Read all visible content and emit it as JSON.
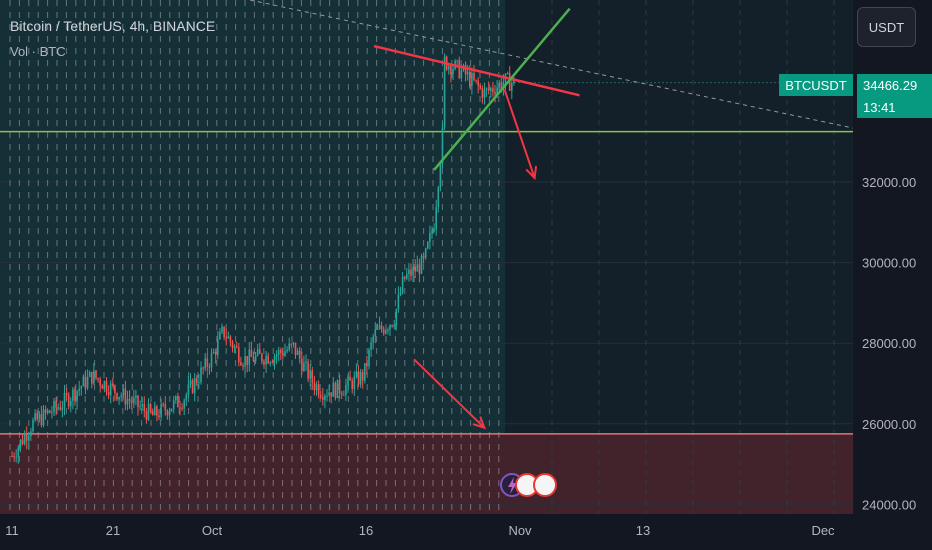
{
  "header": {
    "title": "Bitcoin / TetherUS, 4h, BINANCE",
    "indicator": "Vol · BTC",
    "currency_button": "USDT"
  },
  "price_label": {
    "symbol": "BTCUSDT",
    "price": "34466.29",
    "countdown": "13:41"
  },
  "colors": {
    "background": "#131722",
    "up": "#26a69a",
    "down": "#ef5350",
    "accent_price": "#089981",
    "trend_red": "#f23645",
    "trend_green": "#4caf50"
  },
  "chart_data": {
    "type": "candlestick",
    "symbol": "BTCUSDT",
    "interval": "4h",
    "exchange": "BINANCE",
    "y_ticks": [
      "32000.00",
      "30000.00",
      "28000.00",
      "26000.00",
      "24000.00"
    ],
    "x_ticks": [
      "11",
      "21",
      "Oct",
      "16",
      "Nov",
      "13",
      "Dec"
    ],
    "ylim": [
      23700,
      37500
    ],
    "price_path": [
      [
        "2023-09-11",
        25200
      ],
      [
        "2023-09-13",
        26000
      ],
      [
        "2023-09-16",
        26500
      ],
      [
        "2023-09-19",
        27200
      ],
      [
        "2023-09-22",
        26700
      ],
      [
        "2023-09-25",
        26200
      ],
      [
        "2023-09-28",
        26600
      ],
      [
        "2023-10-01",
        27700
      ],
      [
        "2023-10-02",
        28300
      ],
      [
        "2023-10-04",
        27600
      ],
      [
        "2023-10-07",
        27700
      ],
      [
        "2023-10-09",
        27900
      ],
      [
        "2023-10-11",
        27000
      ],
      [
        "2023-10-12",
        26800
      ],
      [
        "2023-10-14",
        26900
      ],
      [
        "2023-10-16",
        27200
      ],
      [
        "2023-10-17",
        28200
      ],
      [
        "2023-10-19",
        28600
      ],
      [
        "2023-10-20",
        29600
      ],
      [
        "2023-10-22",
        30000
      ],
      [
        "2023-10-23",
        31000
      ],
      [
        "2023-10-24",
        33600
      ],
      [
        "2023-10-24",
        35000
      ],
      [
        "2023-10-26",
        34700
      ],
      [
        "2023-10-28",
        34200
      ],
      [
        "2023-10-30",
        34500
      ],
      [
        "2023-10-31",
        34466
      ]
    ],
    "last_price": 34466.29,
    "horizontal_levels": [
      {
        "price": 33250,
        "color": "#8bc34a"
      },
      {
        "price": 25750,
        "color": "#e57373"
      }
    ],
    "zones": [
      {
        "from": 23700,
        "to": 25750,
        "color": "#ef5350"
      },
      {
        "from": 25750,
        "to": 37500,
        "color": "#26a69a"
      }
    ],
    "trendlines": [
      {
        "from": [
          "2023-10-23",
          35000
        ],
        "to": [
          "2023-11-01",
          34400
        ],
        "color": "#f23645"
      },
      {
        "from": [
          "2023-10-23",
          32300
        ],
        "to": [
          "2023-11-03",
          36300
        ],
        "color": "#4caf50"
      }
    ],
    "arrows": [
      {
        "from": [
          "2023-10-30",
          34300
        ],
        "to": [
          "2023-11-02",
          32100
        ],
        "color": "#f23645"
      },
      {
        "from": [
          "2023-10-21",
          27600
        ],
        "to": [
          "2023-10-28",
          25900
        ],
        "color": "#f23645"
      }
    ],
    "grid": true,
    "legend": "top-left"
  }
}
